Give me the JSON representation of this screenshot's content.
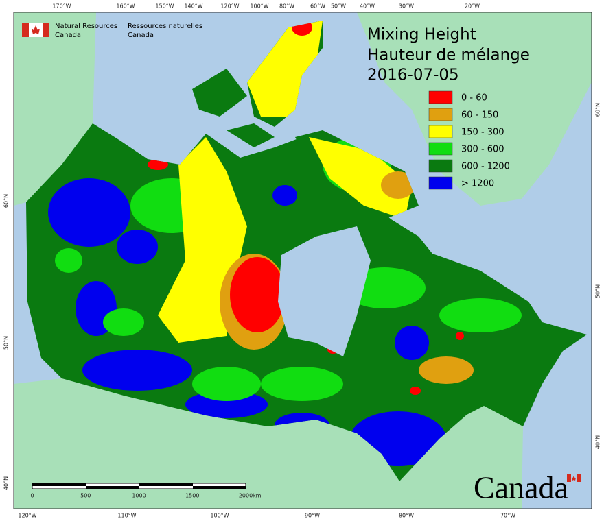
{
  "header": {
    "agency_en": [
      "Natural Resources",
      "Canada"
    ],
    "agency_fr": [
      "Ressources naturelles",
      "Canada"
    ]
  },
  "title": [
    "Mixing Height",
    "Hauteur de mélange",
    "2016-07-05"
  ],
  "legend": [
    {
      "label": "0 - 60",
      "color": "#ff0000"
    },
    {
      "label": "60 - 150",
      "color": "#e0a010"
    },
    {
      "label": "150 - 300",
      "color": "#ffff00"
    },
    {
      "label": "300 - 600",
      "color": "#11dd11"
    },
    {
      "label": "600 - 1200",
      "color": "#0a7a10"
    },
    {
      "label": "> 1200",
      "color": "#0000ee"
    }
  ],
  "top_longitudes": [
    "170°W",
    "160°W",
    "150°W",
    "140°W",
    "120°W",
    "100°W",
    "80°W",
    "60°W",
    "50°W",
    "40°W",
    "30°W",
    "20°W"
  ],
  "bottom_longitudes": [
    "120°W",
    "110°W",
    "100°W",
    "90°W",
    "80°W",
    "70°W"
  ],
  "left_latitudes": [
    "60°N",
    "50°N",
    "40°N"
  ],
  "right_latitudes": [
    "60°N",
    "50°N",
    "40°N"
  ],
  "scale_bar": {
    "labels": [
      "0",
      "500",
      "1000",
      "1500",
      "2000"
    ],
    "unit": "km"
  },
  "wordmark": "Canada"
}
